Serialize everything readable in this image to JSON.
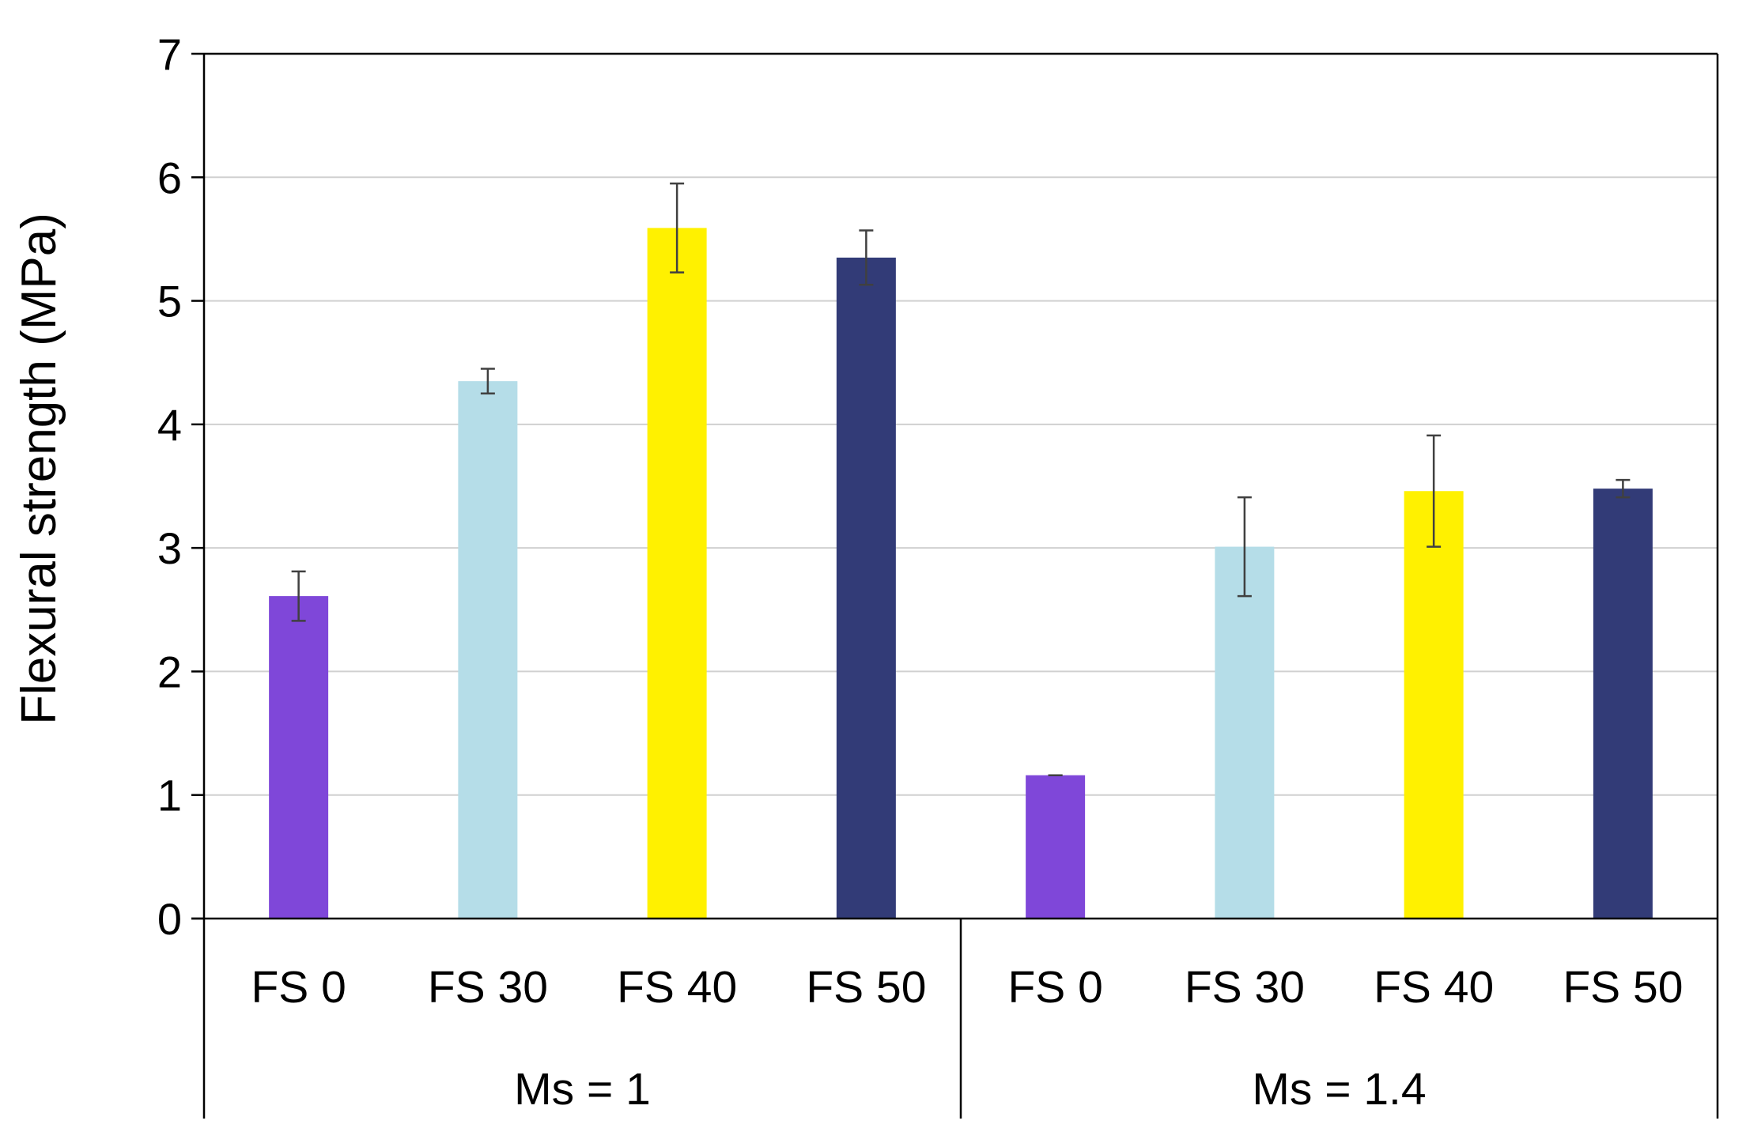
{
  "chart_data": {
    "type": "bar",
    "title": "",
    "xlabel": "",
    "ylabel": "Flexural strength (MPa)",
    "ylim": [
      0,
      7
    ],
    "yticks": [
      0,
      1,
      2,
      3,
      4,
      5,
      6,
      7
    ],
    "grid": true,
    "groups": [
      {
        "label": "Ms = 1",
        "categories": [
          "FS 0",
          "FS 30",
          "FS 40",
          "FS 50"
        ],
        "values": [
          2.61,
          4.35,
          5.59,
          5.35
        ],
        "errors": [
          0.2,
          0.1,
          0.36,
          0.22
        ]
      },
      {
        "label": "Ms = 1.4",
        "categories": [
          "FS 0",
          "FS 30",
          "FS 40",
          "FS 50"
        ],
        "values": [
          1.16,
          3.01,
          3.46,
          3.48
        ],
        "errors": [
          0.0,
          0.4,
          0.45,
          0.07
        ]
      }
    ],
    "bar_colors": [
      "#7f47d9",
      "#b5dde8",
      "#fff100",
      "#323b77"
    ]
  }
}
